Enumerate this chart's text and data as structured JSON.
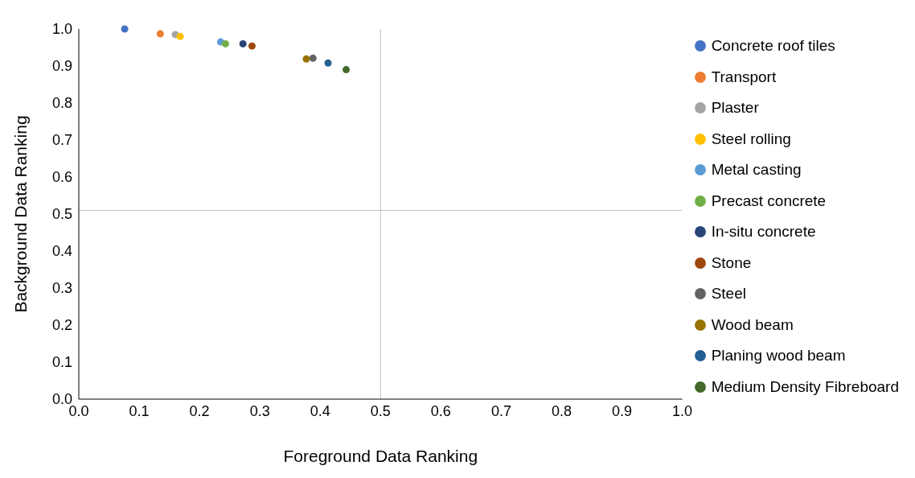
{
  "chart_data": {
    "type": "scatter",
    "xlabel": "Foreground Data Ranking",
    "ylabel": "Background Data Ranking",
    "xlim": [
      0,
      1
    ],
    "ylim": [
      0,
      1
    ],
    "xticks": [
      {
        "value": 0,
        "label": "0.0"
      },
      {
        "value": 0.1,
        "label": "0.1"
      },
      {
        "value": 0.2,
        "label": "0.2"
      },
      {
        "value": 0.3,
        "label": "0.3"
      },
      {
        "value": 0.4,
        "label": "0.4"
      },
      {
        "value": 0.5,
        "label": "0.5"
      },
      {
        "value": 0.6,
        "label": "0.6"
      },
      {
        "value": 0.7,
        "label": "0.7"
      },
      {
        "value": 0.8,
        "label": "0.8"
      },
      {
        "value": 0.9,
        "label": "0.9"
      },
      {
        "value": 1,
        "label": "1.0"
      }
    ],
    "yticks": [
      {
        "value": 0,
        "label": "0.0"
      },
      {
        "value": 0.1,
        "label": "0.1"
      },
      {
        "value": 0.2,
        "label": "0.2"
      },
      {
        "value": 0.3,
        "label": "0.3"
      },
      {
        "value": 0.4,
        "label": "0.4"
      },
      {
        "value": 0.5,
        "label": "0.5"
      },
      {
        "value": 0.6,
        "label": "0.6"
      },
      {
        "value": 0.7,
        "label": "0.7"
      },
      {
        "value": 0.8,
        "label": "0.8"
      },
      {
        "value": 0.9,
        "label": "0.9"
      },
      {
        "value": 1,
        "label": "1.0"
      }
    ],
    "grid": false,
    "legend": "right",
    "marker": "circle",
    "ref_lines": [
      {
        "axis": "x",
        "value": 0.5,
        "color": "#bfbfbf"
      },
      {
        "axis": "y",
        "value": 0.51,
        "color": "#bfbfbf"
      }
    ],
    "series": [
      {
        "name": "Concrete roof tiles",
        "color": "#4472c4",
        "x": [
          0.076
        ],
        "values": [
          1.0
        ]
      },
      {
        "name": "Transport",
        "color": "#ed7d31",
        "x": [
          0.135
        ],
        "values": [
          0.987
        ]
      },
      {
        "name": "Plaster",
        "color": "#a5a5a5",
        "x": [
          0.16
        ],
        "values": [
          0.985
        ]
      },
      {
        "name": "Steel rolling",
        "color": "#ffc000",
        "x": [
          0.168
        ],
        "values": [
          0.98
        ]
      },
      {
        "name": "Metal casting",
        "color": "#5b9bd5",
        "x": [
          0.235
        ],
        "values": [
          0.965
        ]
      },
      {
        "name": "Precast concrete",
        "color": "#70ad47",
        "x": [
          0.243
        ],
        "values": [
          0.96
        ]
      },
      {
        "name": "In-situ concrete",
        "color": "#264478",
        "x": [
          0.272
        ],
        "values": [
          0.96
        ]
      },
      {
        "name": "Stone",
        "color": "#9e480e",
        "x": [
          0.287
        ],
        "values": [
          0.954
        ]
      },
      {
        "name": "Steel",
        "color": "#636363",
        "x": [
          0.388
        ],
        "values": [
          0.921
        ]
      },
      {
        "name": "Wood beam",
        "color": "#997300",
        "x": [
          0.377
        ],
        "values": [
          0.919
        ]
      },
      {
        "name": "Planing wood beam",
        "color": "#255e91",
        "x": [
          0.413
        ],
        "values": [
          0.908
        ]
      },
      {
        "name": "Medium Density Fibreboard",
        "color": "#43682b",
        "x": [
          0.443
        ],
        "values": [
          0.89
        ]
      }
    ]
  }
}
